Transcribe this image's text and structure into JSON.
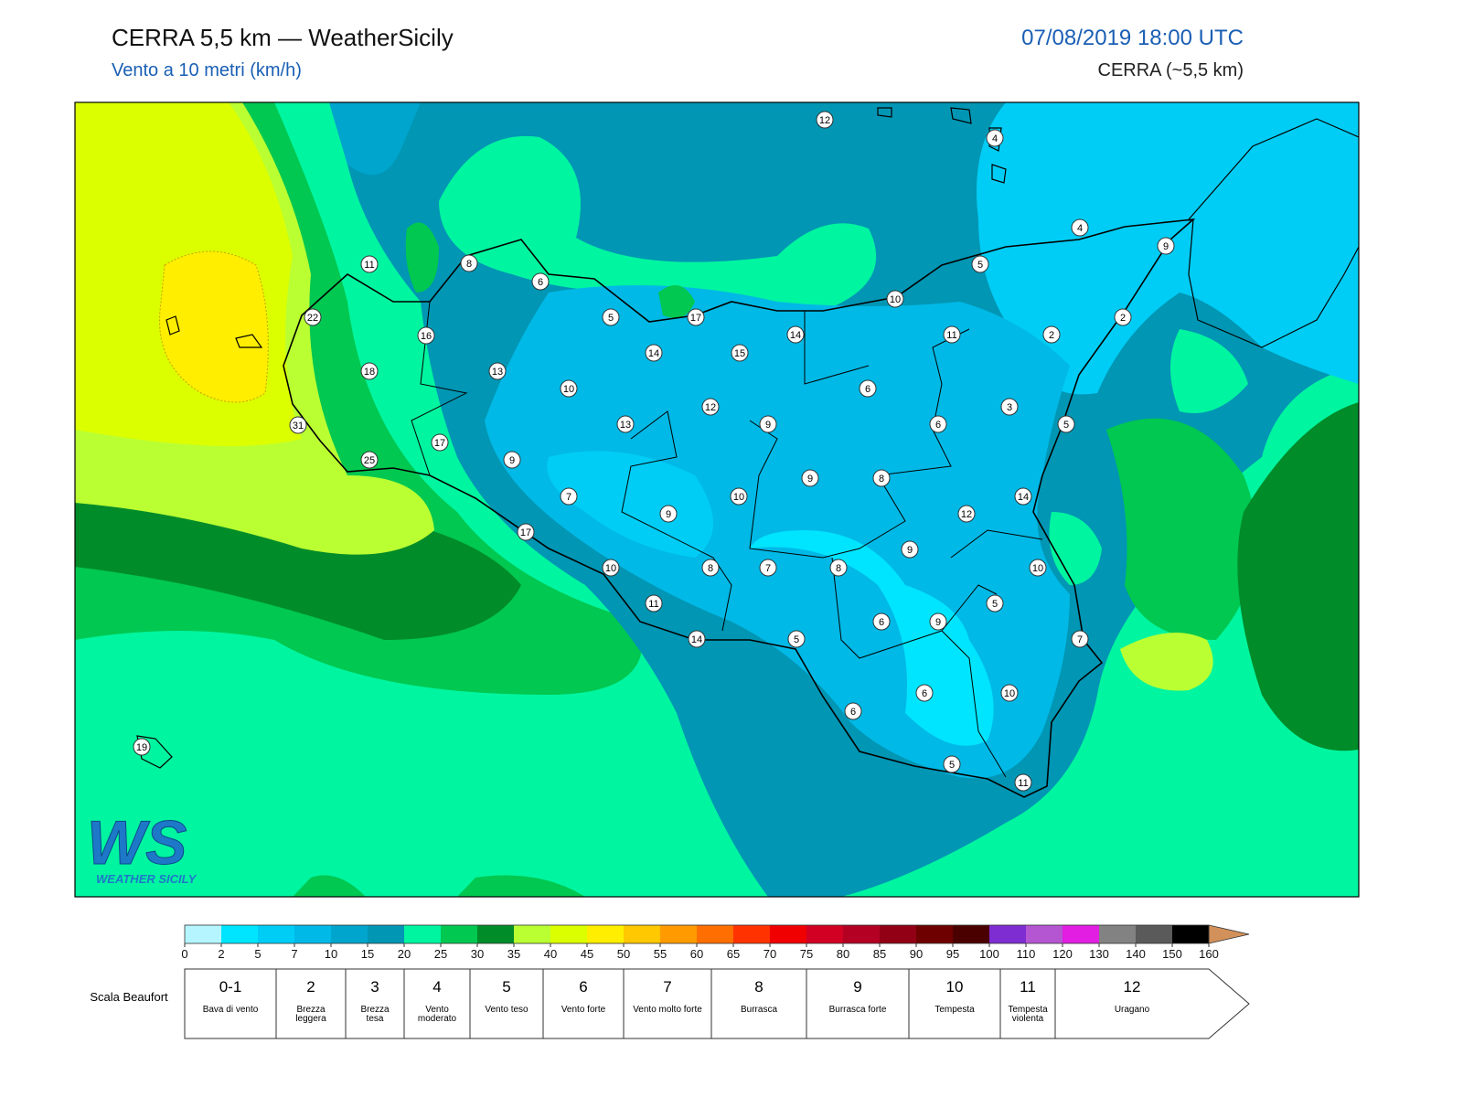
{
  "header": {
    "title": "CERRA 5,5 km — WeatherSicily",
    "subtitle": "Vento a 10 metri (km/h)",
    "datetime": "07/08/2019 18:00 UTC",
    "model": "CERRA (~5,5 km)"
  },
  "map": {
    "stations": [
      12,
      4,
      4,
      9,
      11,
      8,
      6,
      5,
      10,
      22,
      5,
      17,
      14,
      11,
      2,
      2,
      16,
      14,
      15,
      18,
      13,
      10,
      6,
      3,
      12,
      31,
      13,
      9,
      6,
      5,
      17,
      25,
      9,
      9,
      8,
      7,
      10,
      14,
      9,
      12,
      17,
      9,
      10,
      8,
      7,
      8,
      10,
      5,
      11,
      6,
      9,
      14,
      5,
      7,
      6,
      10,
      6,
      19,
      5,
      11
    ]
  },
  "logo": {
    "mark": "WS",
    "caption": "Weather Sicily"
  },
  "colorbar": {
    "ticks": [
      0,
      2,
      5,
      7,
      10,
      15,
      20,
      25,
      30,
      35,
      40,
      45,
      50,
      55,
      60,
      65,
      70,
      75,
      80,
      85,
      90,
      95,
      100,
      110,
      120,
      130,
      140,
      150,
      160
    ],
    "colors": [
      "#b4f5ff",
      "#00e5ff",
      "#00cdf5",
      "#00b9e6",
      "#00a5cd",
      "#0096b4",
      "#00f5a0",
      "#00c850",
      "#008c28",
      "#b9ff32",
      "#dcff00",
      "#ffee00",
      "#ffc800",
      "#ff9b00",
      "#ff6e00",
      "#ff3200",
      "#f00000",
      "#d20023",
      "#b40023",
      "#910014",
      "#6e0000",
      "#4b0000",
      "#7d2dd2",
      "#b455d2",
      "#e11ee1",
      "#828282",
      "#5a5a5a",
      "#000000",
      "#8c4b2d"
    ],
    "over_color": "#d2915a"
  },
  "beaufort": {
    "label": "Scala Beaufort",
    "levels": [
      {
        "force": "0-1",
        "name": "Bava di vento"
      },
      {
        "force": "2",
        "name": "Brezza leggera"
      },
      {
        "force": "3",
        "name": "Brezza tesa"
      },
      {
        "force": "4",
        "name": "Vento moderato"
      },
      {
        "force": "5",
        "name": "Vento teso"
      },
      {
        "force": "6",
        "name": "Vento forte"
      },
      {
        "force": "7",
        "name": "Vento molto forte"
      },
      {
        "force": "8",
        "name": "Burrasca"
      },
      {
        "force": "9",
        "name": "Burrasca forte"
      },
      {
        "force": "10",
        "name": "Tempesta"
      },
      {
        "force": "11",
        "name": "Tempesta violenta"
      },
      {
        "force": "12",
        "name": "Uragano"
      }
    ]
  }
}
